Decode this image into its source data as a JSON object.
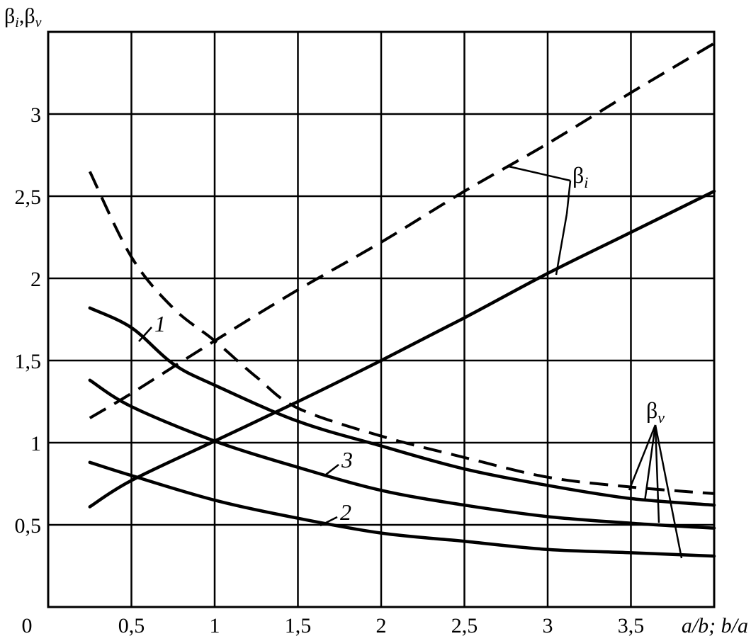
{
  "chart_data": {
    "type": "line",
    "title": "",
    "ylabel": "β",
    "ylabel_sub1": "i",
    "ylabel_sep": ",",
    "ylabel_2": "β",
    "ylabel_sub2": "v",
    "xlabel": "a/b; b/a",
    "origin_label": "0",
    "xlim": [
      0,
      4.0
    ],
    "ylim": [
      0,
      3.5
    ],
    "grid": true,
    "x_ticks": [
      0.5,
      1,
      1.5,
      2,
      2.5,
      3,
      3.5
    ],
    "x_tick_labels": [
      "0,5",
      "1",
      "1,5",
      "2",
      "2,5",
      "3",
      "3,5"
    ],
    "y_ticks": [
      0.5,
      1,
      1.5,
      2,
      2.5,
      3
    ],
    "y_tick_labels": [
      "0,5",
      "1",
      "1,5",
      "2",
      "2,5",
      "3"
    ],
    "series": [
      {
        "style": "solid",
        "group": "beta_i",
        "x": [
          0.25,
          0.5,
          1.0,
          1.5,
          2.0,
          2.5,
          3.0,
          3.5,
          4.0
        ],
        "y": [
          0.61,
          0.77,
          1.01,
          1.25,
          1.5,
          1.76,
          2.03,
          2.28,
          2.53
        ]
      },
      {
        "style": "dashed",
        "group": "beta_i",
        "x": [
          0.25,
          0.5,
          1.0,
          1.5,
          2.0,
          2.5,
          3.0,
          3.5,
          4.0
        ],
        "y": [
          1.15,
          1.3,
          1.62,
          1.93,
          2.22,
          2.53,
          2.82,
          3.13,
          3.43
        ]
      },
      {
        "style": "solid",
        "group": "beta_v",
        "label": "1",
        "x": [
          0.25,
          0.5,
          0.75,
          1.0,
          1.5,
          2.0,
          2.5,
          3.0,
          3.5,
          4.0
        ],
        "y": [
          1.82,
          1.7,
          1.48,
          1.35,
          1.13,
          0.98,
          0.84,
          0.74,
          0.66,
          0.62
        ]
      },
      {
        "style": "dashed",
        "group": "beta_v",
        "x": [
          0.25,
          0.5,
          0.75,
          1.0,
          1.25,
          1.5,
          2.0,
          2.5,
          3.0,
          3.5,
          4.0
        ],
        "y": [
          2.65,
          2.13,
          1.82,
          1.62,
          1.4,
          1.21,
          1.04,
          0.91,
          0.79,
          0.73,
          0.69
        ]
      },
      {
        "style": "solid",
        "group": "beta_v",
        "label": "3",
        "x": [
          0.25,
          0.5,
          1.0,
          1.5,
          2.0,
          2.5,
          3.0,
          3.5,
          4.0
        ],
        "y": [
          1.38,
          1.22,
          1.01,
          0.85,
          0.71,
          0.62,
          0.55,
          0.51,
          0.48
        ]
      },
      {
        "style": "solid",
        "group": "beta_v",
        "label": "2",
        "x": [
          0.25,
          0.5,
          1.0,
          1.5,
          2.0,
          2.5,
          3.0,
          3.5,
          4.0
        ],
        "y": [
          0.88,
          0.8,
          0.65,
          0.54,
          0.45,
          0.4,
          0.35,
          0.33,
          0.31
        ]
      }
    ],
    "annotations": [
      {
        "text": "β",
        "sub": "i",
        "group": "beta_i"
      },
      {
        "text": "β",
        "sub": "v",
        "group": "beta_v"
      },
      {
        "text": "1",
        "curve": "1"
      },
      {
        "text": "3",
        "curve": "3"
      },
      {
        "text": "2",
        "curve": "2"
      }
    ]
  }
}
